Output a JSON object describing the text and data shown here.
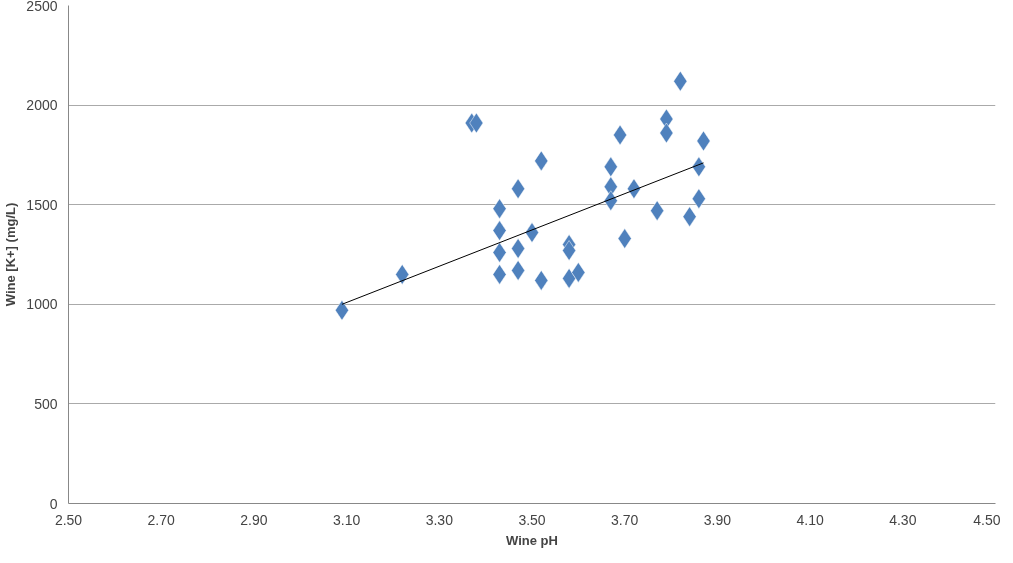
{
  "chart_data": {
    "type": "scatter",
    "xlabel": "Wine pH",
    "ylabel": "Wine [K+] (mg/L)",
    "xlim": [
      2.5,
      4.5
    ],
    "ylim": [
      0,
      2500
    ],
    "xticks": [
      {
        "value": 2.5,
        "label": "2.50"
      },
      {
        "value": 2.7,
        "label": "2.70"
      },
      {
        "value": 2.9,
        "label": "2.90"
      },
      {
        "value": 3.1,
        "label": "3.10"
      },
      {
        "value": 3.3,
        "label": "3.30"
      },
      {
        "value": 3.5,
        "label": "3.50"
      },
      {
        "value": 3.7,
        "label": "3.70"
      },
      {
        "value": 3.9,
        "label": "3.90"
      },
      {
        "value": 4.1,
        "label": "4.10"
      },
      {
        "value": 4.3,
        "label": "4.30"
      },
      {
        "value": 4.5,
        "label": "4.50"
      }
    ],
    "yticks": [
      0,
      500,
      1000,
      1500,
      2000,
      2500
    ],
    "grid": "y",
    "marker": "diamond",
    "series": [
      {
        "color": "#4f81bd",
        "x": [
          3.09,
          3.22,
          3.37,
          3.38,
          3.47,
          3.52,
          3.43,
          3.43,
          3.43,
          3.43,
          3.47,
          3.47,
          3.5,
          3.52,
          3.58,
          3.58,
          3.58,
          3.6,
          3.67,
          3.67,
          3.67,
          3.69,
          3.7,
          3.72,
          3.77,
          3.79,
          3.79,
          3.82,
          3.87,
          3.86,
          3.86,
          3.84
        ],
        "values": [
          970,
          1150,
          1910,
          1910,
          1580,
          1720,
          1480,
          1370,
          1260,
          1150,
          1170,
          1280,
          1360,
          1120,
          1130,
          1300,
          1270,
          1160,
          1690,
          1590,
          1520,
          1850,
          1330,
          1580,
          1470,
          1930,
          1860,
          2120,
          1820,
          1690,
          1530,
          1440
        ]
      },
      {
        "type": "line",
        "marker": "none",
        "color": "#000000",
        "x": [
          3.09,
          3.87
        ],
        "values": [
          1000,
          1710
        ]
      }
    ]
  }
}
